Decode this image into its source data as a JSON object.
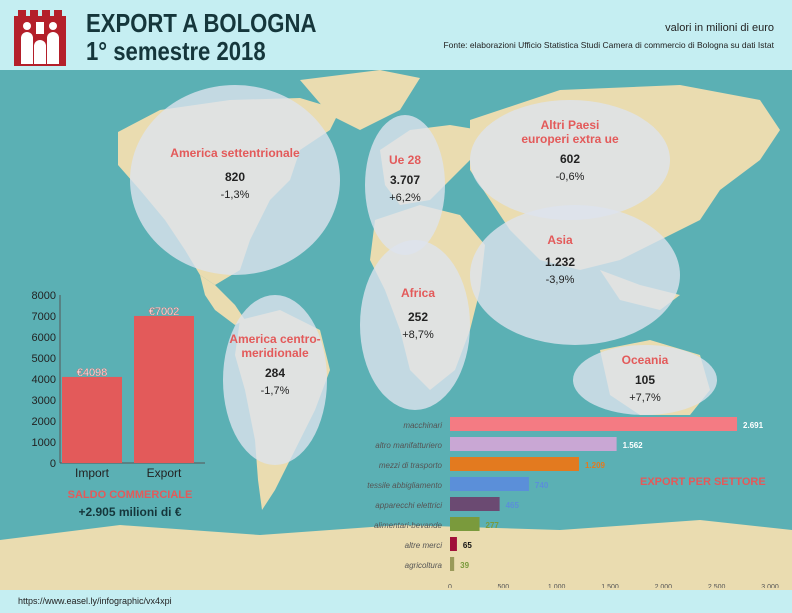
{
  "header": {
    "title_line1": "EXPORT A BOLOGNA",
    "title_line2": "1° semestre 2018",
    "units": "valori in milioni di euro",
    "source": "Fonte: elaborazioni Ufficio Statistica Studi Camera di commercio di Bologna su dati Istat"
  },
  "regions": [
    {
      "name": "America settentrionale",
      "value": "820",
      "change": "-1,3%"
    },
    {
      "name": "Ue 28",
      "value": "3.707",
      "change": "+6,2%"
    },
    {
      "name": "Altri Paesi europeri extra ue",
      "value": "602",
      "change": "-0,6%"
    },
    {
      "name": "Asia",
      "value": "1.232",
      "change": "-3,9%"
    },
    {
      "name": "Africa",
      "value": "252",
      "change": "+8,7%"
    },
    {
      "name": "America centro-meridionale",
      "value": "284",
      "change": "-1,7%"
    },
    {
      "name": "Oceania",
      "value": "105",
      "change": "+7,7%"
    }
  ],
  "trade": {
    "title": "SALDO COMMERCIALE",
    "balance": "+2.905 milioni di €"
  },
  "sector_title": "EXPORT PER SETTORE",
  "footer": {
    "url": "https://www.easel.ly/infographic/vx4xpi"
  },
  "colors": {
    "accent": "#e35a5a",
    "ocean": "#5bb0b4",
    "land": "#eadcb0",
    "bubble": "#dde3ee"
  },
  "chart_data": [
    {
      "type": "bar",
      "categories": [
        "Import",
        "Export"
      ],
      "values": [
        4098,
        7002
      ],
      "data_labels": [
        "€4098",
        "€7002"
      ],
      "y_ticks": [
        "0",
        "1000",
        "2000",
        "3000",
        "4000",
        "5000",
        "6000",
        "7000",
        "8000"
      ],
      "ylim": [
        0,
        8000
      ],
      "bar_color": "#e35a5a",
      "grid": false
    },
    {
      "type": "bar",
      "orientation": "horizontal",
      "title": "EXPORT PER SETTORE",
      "categories": [
        "macchinari",
        "altro manifatturiero",
        "mezzi di trasporto",
        "tessile abbigliamento",
        "apparecchi elettrici",
        "alimentari-bevande",
        "altre merci",
        "agricoltura"
      ],
      "values": [
        2691,
        1562,
        1209,
        740,
        465,
        277,
        65,
        39
      ],
      "data_labels": [
        "2.691",
        "1.562",
        "1.209",
        "740",
        "465",
        "277",
        "65",
        "39"
      ],
      "colors": [
        "#f47b83",
        "#c9a7d4",
        "#e37a1f",
        "#5b8fd9",
        "#6b4a72",
        "#7a9a3c",
        "#a0103a",
        "#9a9a5a"
      ],
      "label_colors": [
        "#ffffff",
        "#ffffff",
        "#e37a1f",
        "#5b8fd9",
        "#5b8fd9",
        "#7a9a3c",
        "#111111",
        "#7a9a3c"
      ],
      "x_ticks": [
        "0",
        "500",
        "1.000",
        "1.500",
        "2.000",
        "2.500",
        "3.000"
      ],
      "xlim": [
        0,
        3000
      ],
      "grid": false
    }
  ]
}
